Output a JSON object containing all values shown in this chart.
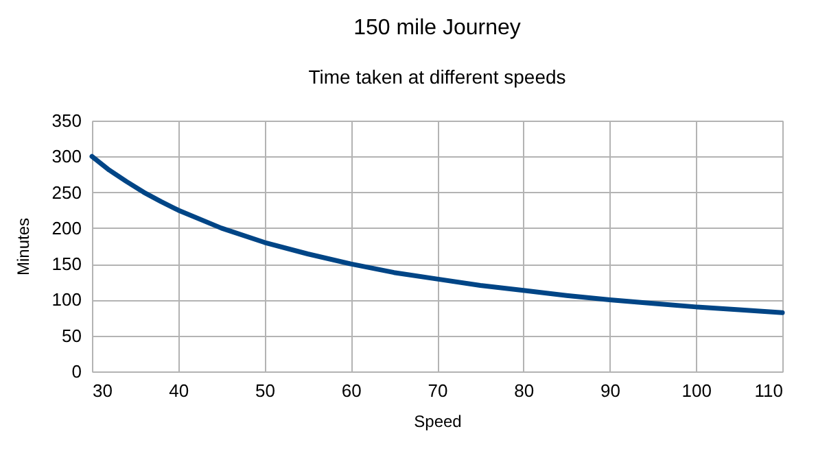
{
  "chart_data": {
    "type": "line",
    "title": "150 mile Journey",
    "subtitle": "Time taken at different speeds",
    "xlabel": "Speed",
    "ylabel": "Minutes",
    "x": [
      30,
      32,
      34,
      36,
      38,
      40,
      45,
      50,
      55,
      60,
      65,
      70,
      75,
      80,
      85,
      90,
      95,
      100,
      105,
      110
    ],
    "series": [
      {
        "color": "#004586",
        "values": [
          300,
          281,
          265,
          250,
          237,
          225,
          200,
          180,
          164,
          150,
          138,
          129,
          120,
          113,
          106,
          100,
          95,
          90,
          86,
          82
        ]
      }
    ],
    "xlim": [
      30,
      110
    ],
    "xticks": [
      30,
      40,
      50,
      60,
      70,
      80,
      90,
      100,
      110
    ],
    "ylim": [
      0,
      350
    ],
    "yticks": [
      0,
      50,
      100,
      150,
      200,
      250,
      300,
      350
    ],
    "grid": true,
    "marker": "none",
    "line_style": "solid"
  }
}
